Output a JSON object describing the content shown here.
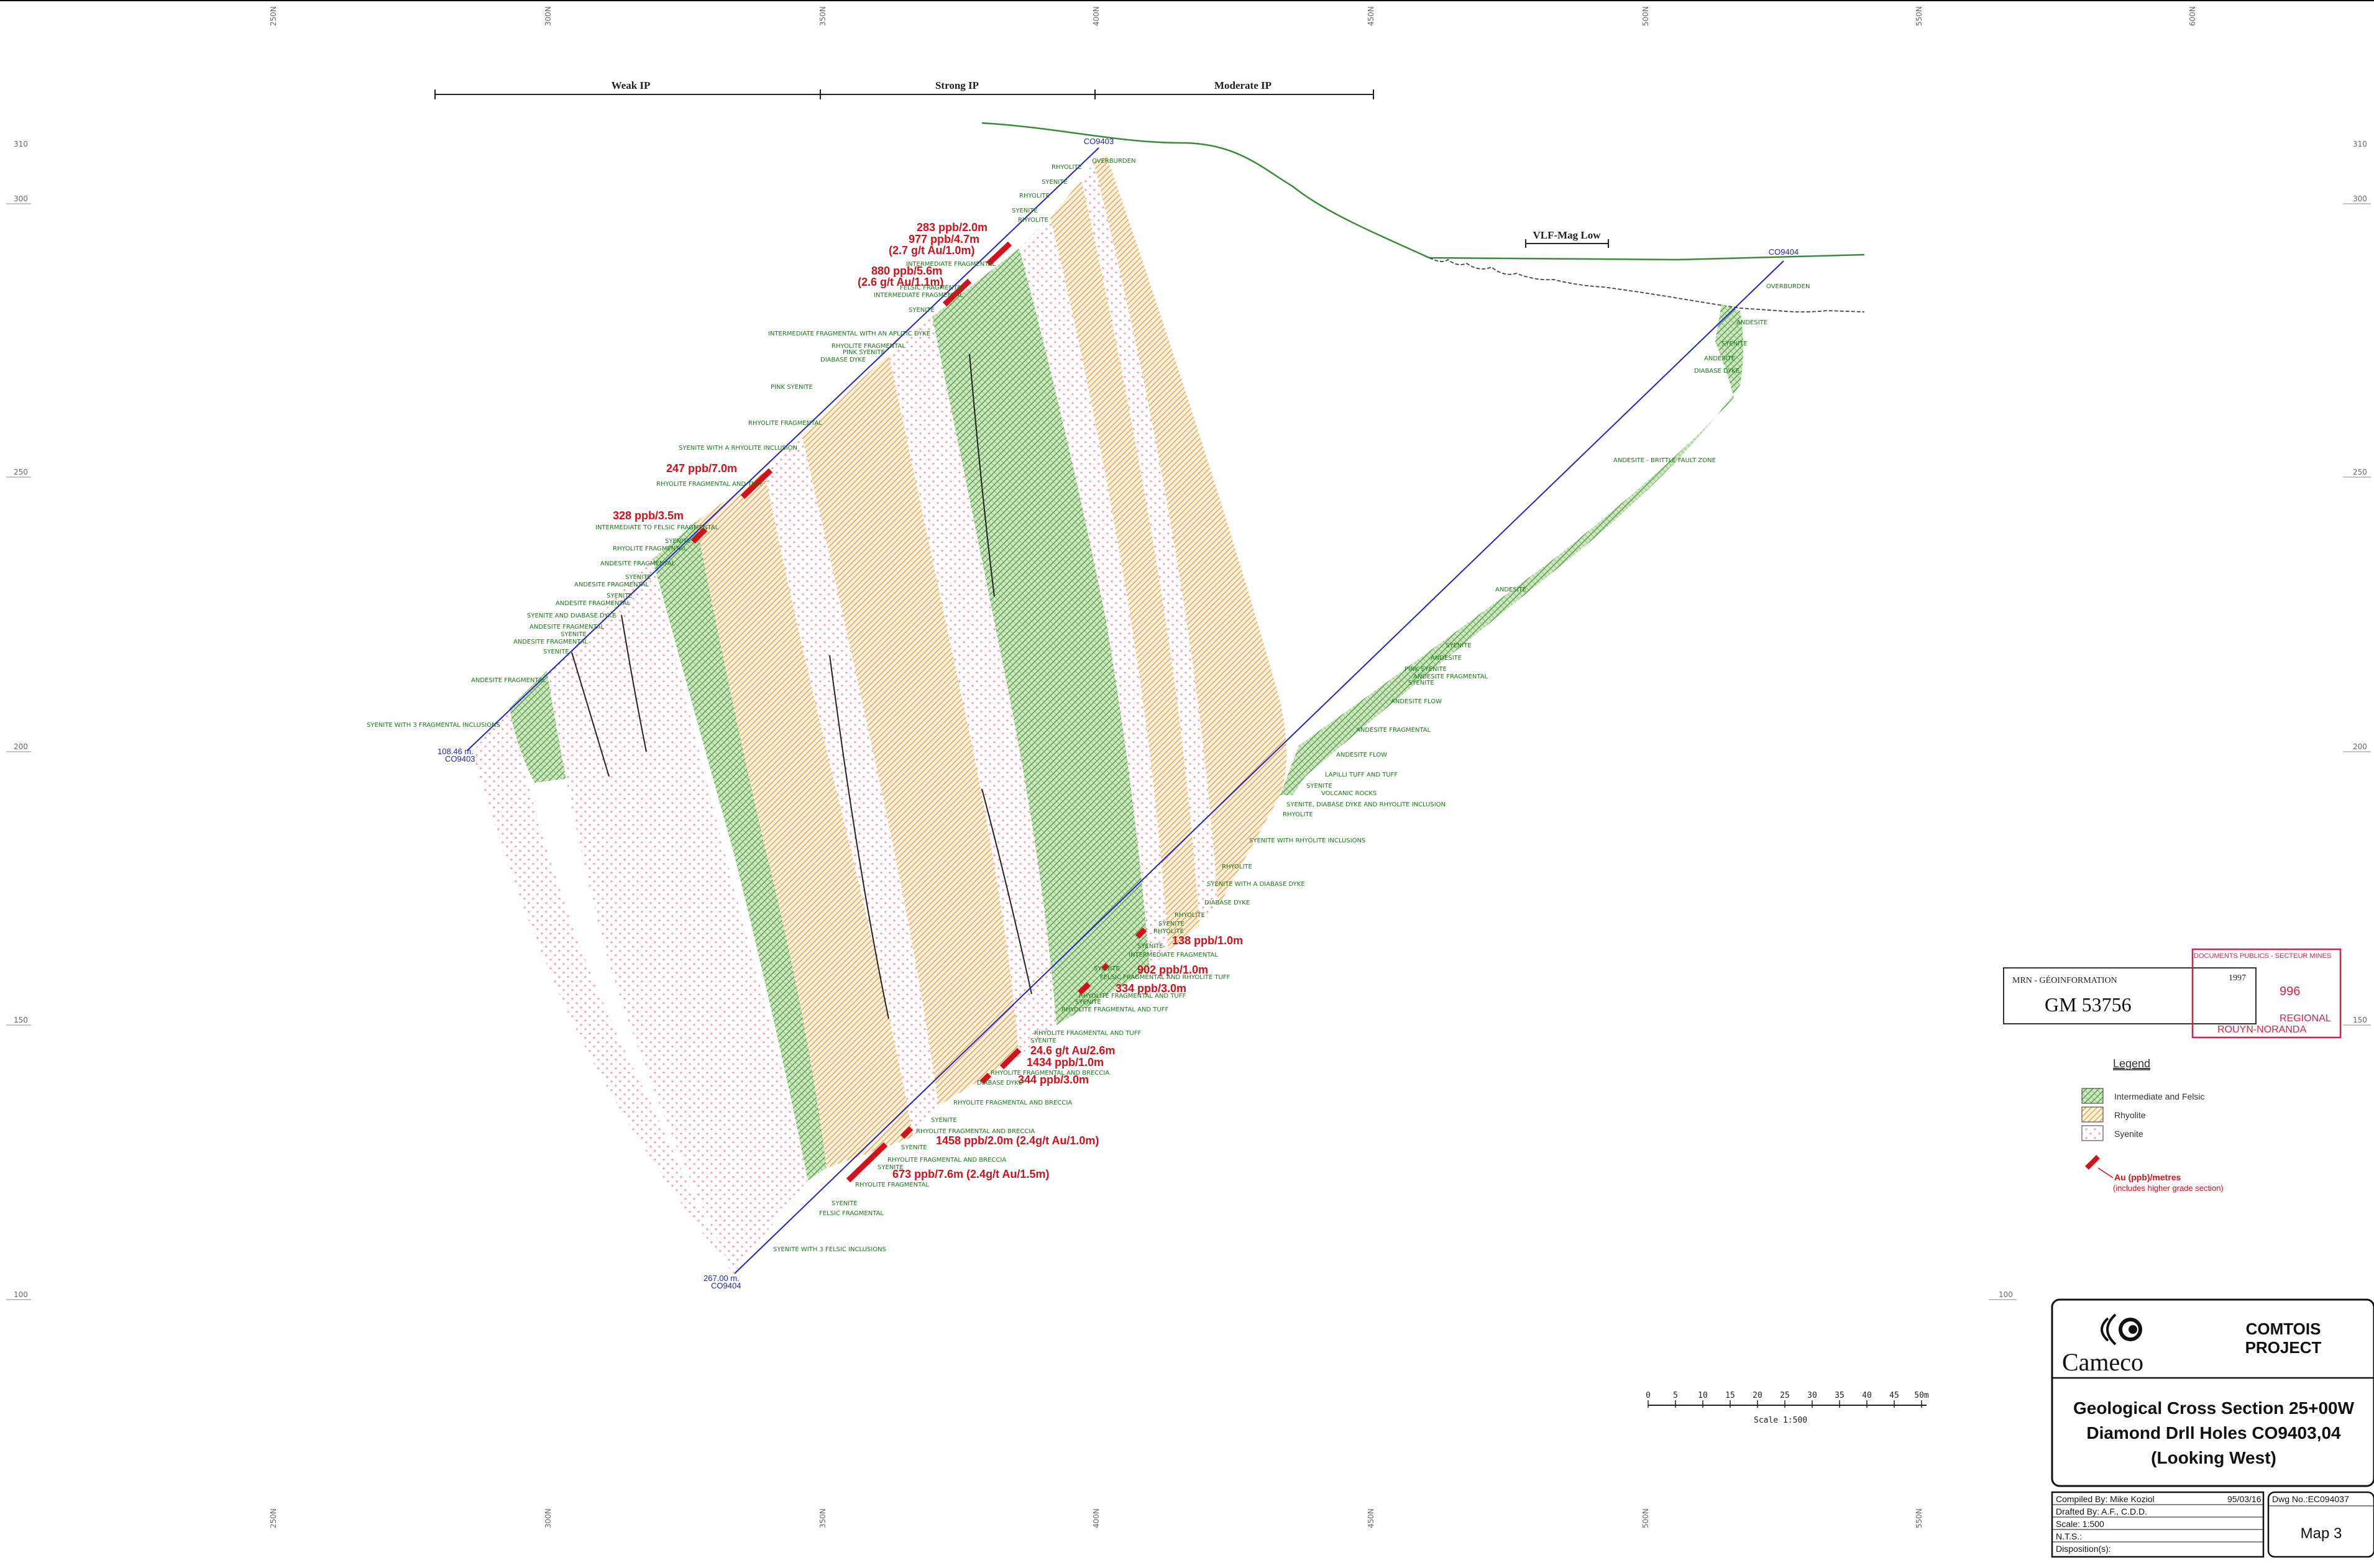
{
  "grid": {
    "top_ticks": [
      "250N",
      "300N",
      "350N",
      "400N",
      "450N",
      "500N",
      "550N",
      "600N"
    ],
    "side_ticks": [
      "310",
      "300",
      "250",
      "200",
      "150",
      "100"
    ],
    "bottom_ticks": [
      "250N",
      "300N",
      "350N",
      "400N",
      "450N",
      "500N",
      "550N"
    ]
  },
  "ip": {
    "weak": "Weak IP",
    "strong": "Strong IP",
    "moderate": "Moderate IP",
    "vlf": "VLF-Mag Low"
  },
  "holes": {
    "h1_top": "CO9403",
    "h1_end_depth": "108.46 m.",
    "h1_end_name": "CO9403",
    "h2_top": "CO9404",
    "h2_end_depth": "267.00 m.",
    "h2_end_name": "CO9404"
  },
  "assays": [
    "283 ppb/2.0m",
    "977 ppb/4.7m",
    "(2.7 g/t Au/1.0m)",
    "880 ppb/5.6m",
    "(2.6 g/t Au/1.1m)",
    "247 ppb/7.0m",
    "328 ppb/3.5m",
    "138 ppb/1.0m",
    "902 ppb/1.0m",
    "334 ppb/3.0m",
    "24.6 g/t Au/2.6m",
    "1434 ppb/1.0m",
    "344 ppb/3.0m",
    "1458 ppb/2.0m (2.4g/t Au/1.0m)",
    "673 ppb/7.6m (2.4g/t Au/1.5m)"
  ],
  "hole1_labels": [
    "RHYOLITE",
    "OVERBURDEN",
    "SYENITE",
    "RHYOLITE",
    "SYENITE",
    "RHYOLITE",
    "INTERMEDIATE FRAGMENTAL",
    "FELSIC FRAGMENTAL",
    "INTERMEDIATE FRAGMENTAL",
    "SYENITE",
    "INTERMEDIATE FRAGMENTAL WITH AN APLITIC DYKE",
    "RHYOLITE FRAGMENTAL",
    "PINK SYENITE",
    "DIABASE DYKE",
    "PINK SYENITE",
    "RHYOLITE FRAGMENTAL",
    "SYENITE WITH A RHYOLITE INCLUSION",
    "RHYOLITE FRAGMENTAL AND TUFF",
    "INTERMEDIATE TO FELSIC FRAGMENTAL",
    "SYENITE",
    "RHYOLITE FRAGMENTAL",
    "ANDESITE FRAGMENTAL",
    "SYENITE",
    "ANDESITE FRAGMENTAL",
    "SYENITE",
    "ANDESITE FRAGMENTAL",
    "SYENITE AND DIABASE DYKE",
    "ANDESITE FRAGMENTAL",
    "SYENITE",
    "ANDESITE FRAGMENTAL",
    "SYENITE",
    "ANDESITE FRAGMENTAL",
    "SYENITE WITH 3 FRAGMENTAL INCLUSIONS"
  ],
  "hole2_labels": [
    "OVERBURDEN",
    "ANDESITE",
    "SYENITE",
    "ANDESITE",
    "DIABASE DYKE",
    "ANDESITE - BRITTLE FAULT ZONE",
    "ANDESITE",
    "SYENITE",
    "ANDESITE",
    "PINK SYENITE",
    "ANDESITE FRAGMENTAL",
    "SYENITE",
    "ANDESITE FLOW",
    "ANDESITE FRAGMENTAL",
    "ANDESITE FLOW",
    "LAPILLI TUFF AND TUFF",
    "SYENITE",
    "VOLCANIC ROCKS",
    "SYENITE, DIABASE DYKE AND RHYOLITE INCLUSION",
    "RHYOLITE",
    "SYENITE WITH RHYOLITE INCLUSIONS",
    "RHYOLITE",
    "SYENITE WITH A DIABASE DYKE",
    "DIABASE DYKE",
    "RHYOLITE",
    "SYENITE",
    "RHYOLITE",
    "INTERMEDIATE FRAGMENTAL",
    "SYENITE",
    "FELSIC FRAGMENTAL AND RHYOLITE TUFF",
    "SYENITE",
    "RHYOLITE FRAGMENTAL AND TUFF",
    "SYENITE",
    "RHYOLITE FRAGMENTAL AND TUFF",
    "RHYOLITE FRAGMENTAL AND TUFF",
    "SYENITE",
    "RHYOLITE FRAGMENTAL AND BRECCIA",
    "DIABASE DYKE",
    "RHYOLITE FRAGMENTAL AND BRECCIA",
    "SYENITE",
    "RHYOLITE FRAGMENTAL AND BRECCIA",
    "SYENITE",
    "RHYOLITE FRAGMENTAL AND BRECCIA",
    "SYENITE",
    "RHYOLITE FRAGMENTAL",
    "SYENITE",
    "FELSIC FRAGMENTAL",
    "SYENITE WITH 3 FELSIC INCLUSIONS"
  ],
  "stamp": {
    "org": "MRN - GÉOINFORMATION",
    "year": "1997",
    "number": "GM 53756",
    "red_line1": "DOCUMENTS PUBLICS - SECTEUR MINES",
    "red_line2": "996",
    "red_line3": "REGIONAL",
    "red_line4": "ROUYN-NORANDA"
  },
  "legend": {
    "title": "Legend",
    "items": [
      "Intermediate and Felsic",
      "Rhyolite",
      "Syenite"
    ],
    "au_label": "Au (ppb)/metres",
    "au_note": "(includes higher grade section)"
  },
  "scale": {
    "ticks": [
      "0",
      "5",
      "10",
      "15",
      "20",
      "25",
      "30",
      "35",
      "40",
      "45",
      "50m"
    ],
    "label": "Scale   1:500"
  },
  "title_block": {
    "company": "Cameco",
    "project_line1": "COMTOIS",
    "project_line2": "PROJECT",
    "title1": "Geological Cross Section 25+00W",
    "title2": "Diamond Drll Holes CO9403,04",
    "title3": "(Looking West)",
    "compiled": "Compiled By: Mike Koziol",
    "date": "95/03/16",
    "drafted": "Drafted By: A.F., C.D.D.",
    "scale": "Scale: 1:500",
    "nts": "N.T.S.:",
    "disposition": "Disposition(s):",
    "dwg": "Dwg No.:EC094037",
    "map": "Map 3"
  },
  "colors": {
    "felsic": "#9cc78a",
    "rhyolite": "#f2b56b",
    "syenite": "#e8506a",
    "assay": "#d4101a",
    "hole": "#2222cc",
    "geo_text": "#1a7a1a",
    "topo": "#3a8a3a"
  }
}
